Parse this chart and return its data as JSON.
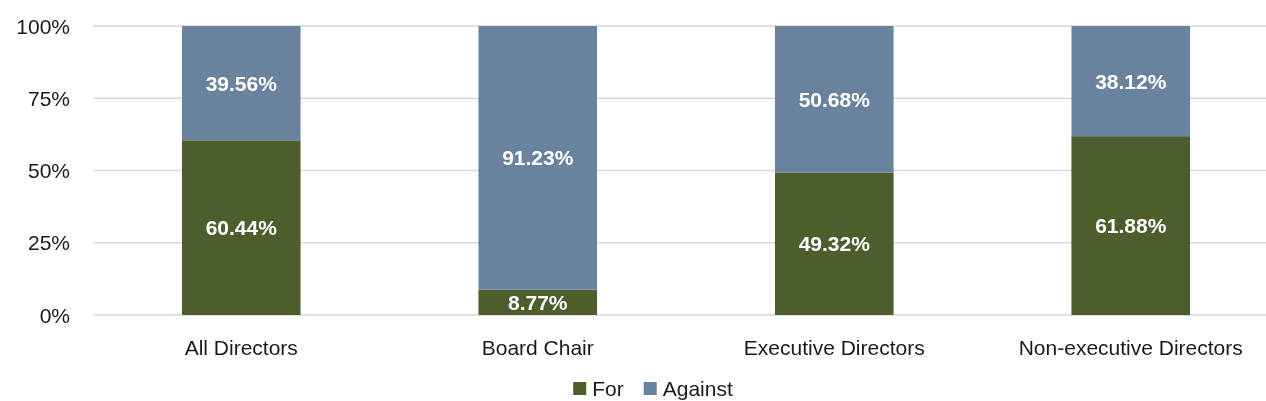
{
  "chart_data": {
    "type": "bar",
    "stacked": true,
    "categories": [
      "All Directors",
      "Board Chair",
      "Executive Directors",
      "Non-executive Directors"
    ],
    "series": [
      {
        "name": "For",
        "color": "#4b5e2b",
        "values": [
          60.44,
          8.77,
          49.32,
          61.88
        ],
        "value_labels": [
          "60.44%",
          "8.77%",
          "49.32%",
          "61.88%"
        ]
      },
      {
        "name": "Against",
        "color": "#69829e",
        "values": [
          39.56,
          91.23,
          50.68,
          38.12
        ],
        "value_labels": [
          "39.56%",
          "91.23%",
          "50.68%",
          "38.12%"
        ]
      }
    ],
    "ylim": [
      0,
      100
    ],
    "yticks": [
      {
        "value": 0,
        "label": "0%"
      },
      {
        "value": 25,
        "label": "25%"
      },
      {
        "value": 50,
        "label": "50%"
      },
      {
        "value": 75,
        "label": "75%"
      },
      {
        "value": 100,
        "label": "100%"
      }
    ],
    "grid": "y",
    "legend": "bottom"
  }
}
